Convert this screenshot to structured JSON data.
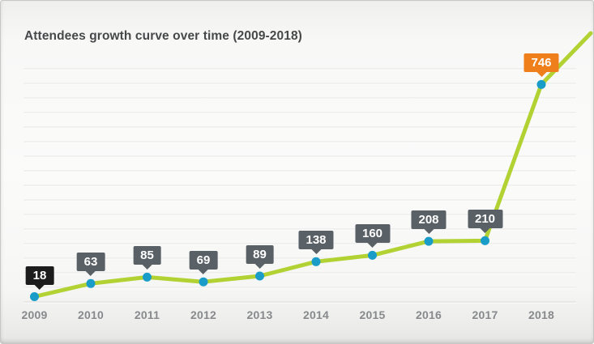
{
  "chart_data": {
    "type": "line",
    "title": "Attendees growth curve over time (2009-2018)",
    "categories": [
      "2009",
      "2010",
      "2011",
      "2012",
      "2013",
      "2014",
      "2015",
      "2016",
      "2017",
      "2018"
    ],
    "values": [
      18,
      63,
      85,
      69,
      89,
      138,
      160,
      208,
      210,
      746
    ],
    "data_labels": [
      "18",
      "63",
      "85",
      "69",
      "89",
      "138",
      "160",
      "208",
      "210",
      "746"
    ],
    "xlabel": "",
    "ylabel": "",
    "ylim": [
      0,
      800
    ],
    "gridline_step": 50,
    "grid": "horizontal-only",
    "legend": "none",
    "line_color": "#b2d234",
    "point_color": "#1a9cc9",
    "callout_text_color": "#ffffff",
    "callout_colors": [
      "#1c1c1c",
      "#5a6166",
      "#5a6166",
      "#5a6166",
      "#5a6166",
      "#5a6166",
      "#5a6166",
      "#5a6166",
      "#5a6166",
      "#ef7f1a"
    ],
    "grid_color": "#e6e6e4",
    "axis_color": "#d7d7d5",
    "title_color": "#47484a",
    "tick_label_color": "#87898c"
  }
}
